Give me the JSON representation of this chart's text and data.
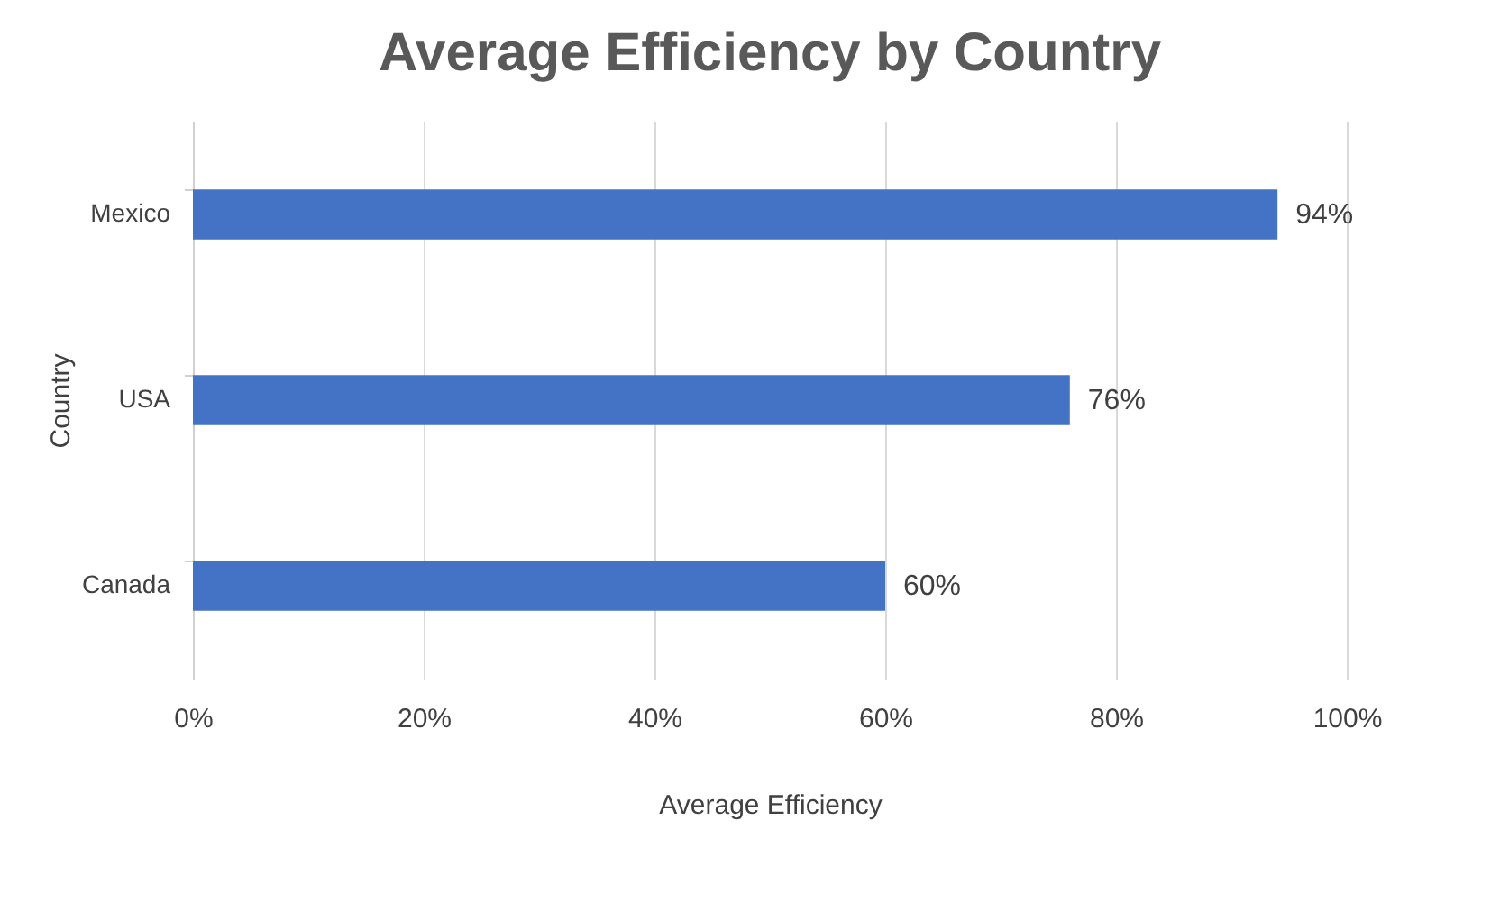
{
  "chart_data": {
    "type": "bar",
    "orientation": "horizontal",
    "title": "Average Efficiency by Country",
    "xlabel": "Average Efficiency",
    "ylabel": "Country",
    "categories": [
      "Mexico",
      "USA",
      "Canada"
    ],
    "values": [
      94,
      76,
      60
    ],
    "color": "#4472c4",
    "value_labels": [
      "94%",
      "76%",
      "60%"
    ],
    "xlim": [
      0,
      100
    ],
    "xticks": [
      {
        "value": 0,
        "label": "0%"
      },
      {
        "value": 20,
        "label": "20%"
      },
      {
        "value": 40,
        "label": "40%"
      },
      {
        "value": 60,
        "label": "60%"
      },
      {
        "value": 80,
        "label": "80%"
      },
      {
        "value": 100,
        "label": "100%"
      }
    ],
    "grid": "x"
  }
}
